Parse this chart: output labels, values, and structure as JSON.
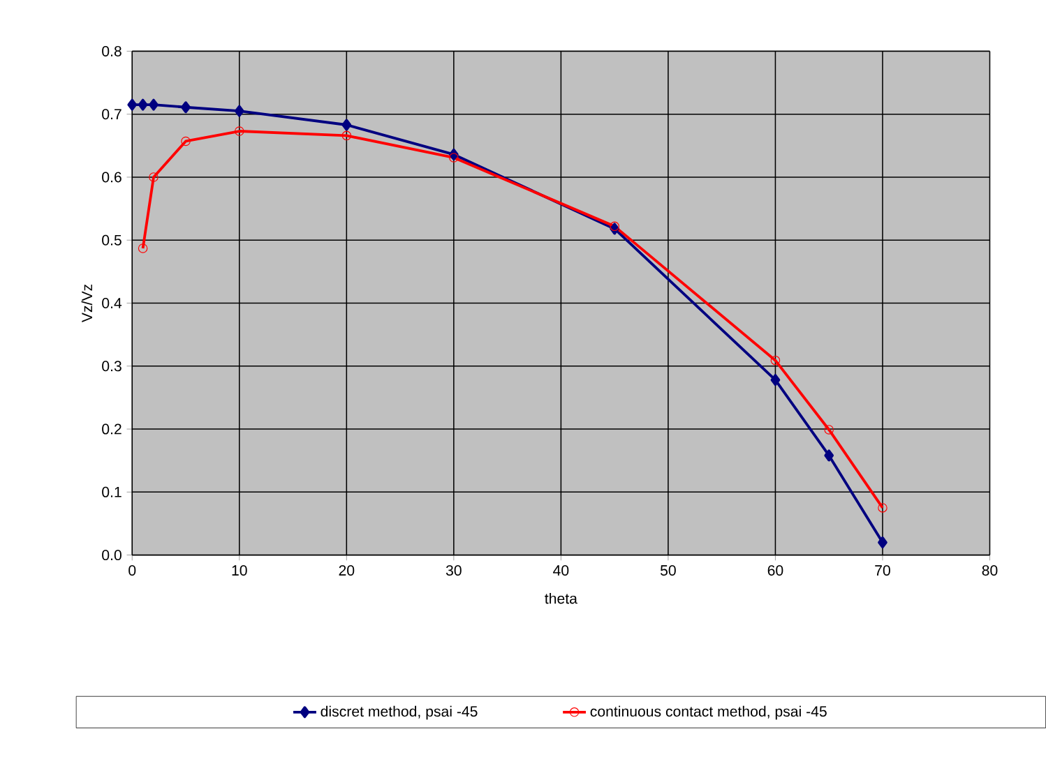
{
  "chart_data": {
    "type": "line",
    "xlabel": "theta",
    "ylabel": "Vz/Vz",
    "xlim": [
      0,
      80
    ],
    "ylim": [
      0,
      0.8
    ],
    "xticks": [
      0,
      10,
      20,
      30,
      40,
      50,
      60,
      70,
      80
    ],
    "yticks": [
      {
        "value": 0,
        "label": "0.0"
      },
      0.1,
      0.2,
      0.3,
      0.4,
      0.5,
      0.6,
      0.7,
      0.8
    ],
    "grid": true,
    "legend": "bottom",
    "line_style": "solid",
    "series": [
      {
        "name": "discret method, psai -45",
        "color": "#000080",
        "marker": "diamond",
        "x": [
          0,
          1,
          2,
          5,
          10,
          20,
          30,
          45,
          60,
          65,
          70
        ],
        "values": [
          0.715,
          0.715,
          0.715,
          0.711,
          0.705,
          0.683,
          0.636,
          0.518,
          0.278,
          0.158,
          0.02
        ]
      },
      {
        "name": "continuous contact method, psai -45",
        "color": "#ff0000",
        "marker": "circle",
        "x": [
          1,
          2,
          5,
          10,
          20,
          30,
          45,
          60,
          65,
          70
        ],
        "values": [
          0.487,
          0.6,
          0.657,
          0.673,
          0.666,
          0.631,
          0.522,
          0.309,
          0.199,
          0.075
        ]
      }
    ]
  }
}
